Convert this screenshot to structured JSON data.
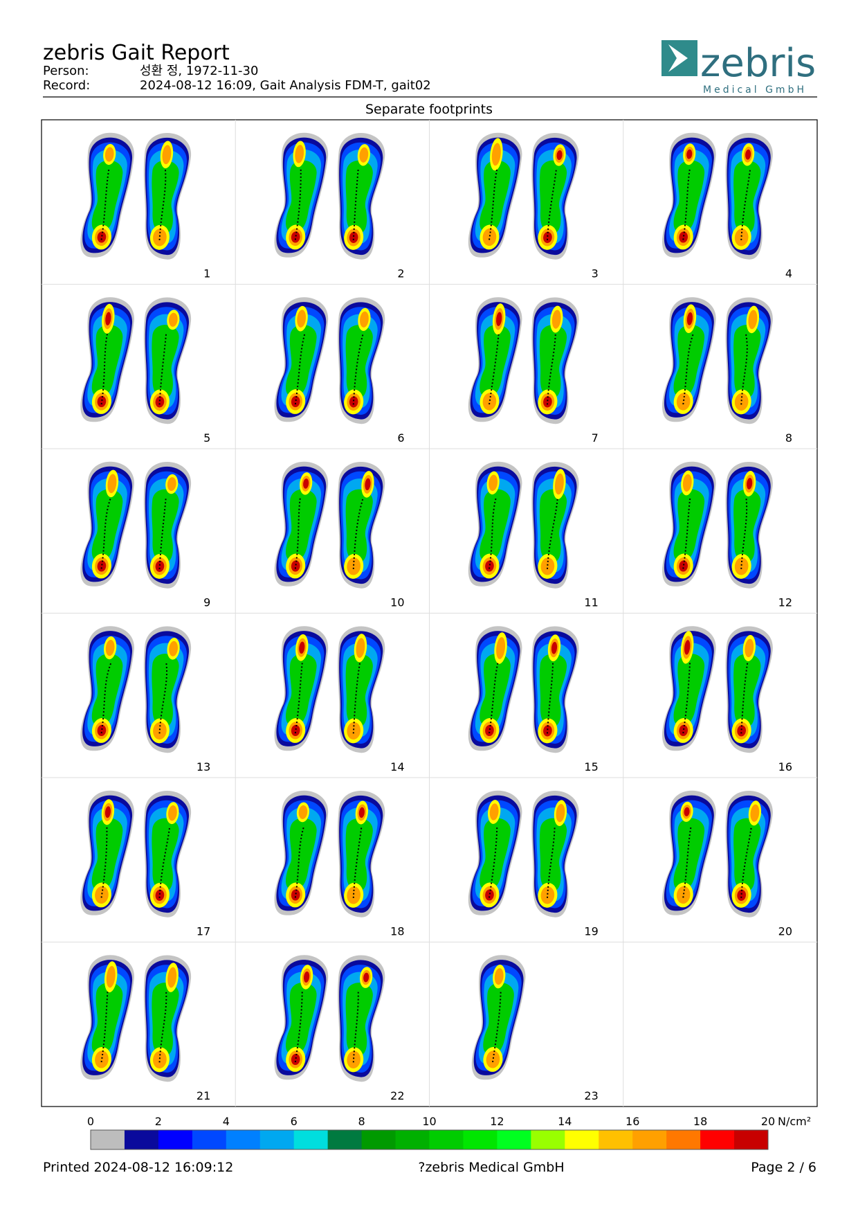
{
  "header": {
    "title": "zebris Gait Report",
    "person_label": "Person:",
    "person_value": "성환 정, 1972-11-30",
    "record_label": "Record:",
    "record_value": "2024-08-12 16:09, Gait Analysis FDM-T, gait02"
  },
  "logo": {
    "name": "zebris",
    "subtitle": "Medical GmbH"
  },
  "section": {
    "title": "Separate footprints",
    "cells": [
      1,
      2,
      3,
      4,
      5,
      6,
      7,
      8,
      9,
      10,
      11,
      12,
      13,
      14,
      15,
      16,
      17,
      18,
      19,
      20,
      21,
      22,
      23
    ]
  },
  "colorscale": {
    "range": [
      0,
      20
    ],
    "ticks": [
      0,
      2,
      4,
      6,
      8,
      10,
      12,
      14,
      16,
      18,
      20
    ],
    "unit": "N/cm²",
    "colors": [
      "#bdbdbd",
      "#0a0a9c",
      "#0000ff",
      "#0048ff",
      "#0080ff",
      "#00a8f0",
      "#00dede",
      "#007a40",
      "#009a00",
      "#00b000",
      "#00cc00",
      "#00e600",
      "#00ff20",
      "#99ff00",
      "#ffff00",
      "#ffc000",
      "#ffa000",
      "#ff7800",
      "#ff0000",
      "#c80000"
    ]
  },
  "footer": {
    "printed": "Printed  2024-08-12 16:09:12",
    "copyright": "?zebris Medical GmbH",
    "page": "Page  2 / 6"
  }
}
